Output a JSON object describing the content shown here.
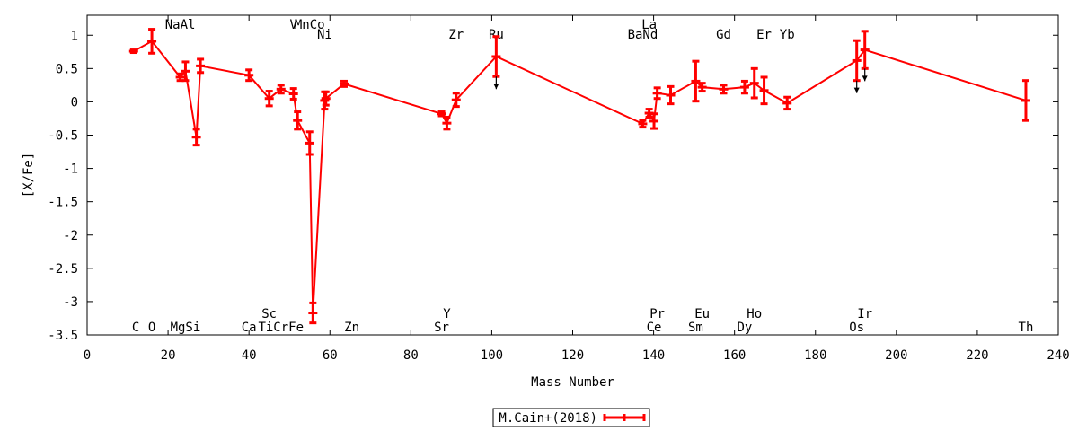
{
  "chart_data": {
    "type": "line",
    "xlabel": "Mass Number",
    "ylabel": "[X/Fe]",
    "xlim": [
      0,
      240
    ],
    "ylim": [
      -3.5,
      1.3
    ],
    "xticks": [
      0,
      20,
      40,
      60,
      80,
      100,
      120,
      140,
      160,
      180,
      200,
      220,
      240
    ],
    "yticks": [
      -3.5,
      -3,
      -2.5,
      -2,
      -1.5,
      -1,
      -0.5,
      0,
      0.5,
      1
    ],
    "ytick_labels": [
      "-3.5",
      "-3",
      "-2.5",
      "-2",
      "-1.5",
      "-1",
      "-0.5",
      "0",
      "0.5",
      "1"
    ],
    "grid": false,
    "legend_position": "bottom-center",
    "series": [
      {
        "name": "M.Cain+(2018)",
        "color": "#ff0000",
        "points": [
          {
            "x": 11.5,
            "y": 0.76,
            "err": 0.02
          },
          {
            "x": 16,
            "y": 0.91,
            "err": 0.18
          },
          {
            "x": 23,
            "y": 0.37,
            "err": 0.05
          },
          {
            "x": 24.3,
            "y": 0.46,
            "err": 0.14
          },
          {
            "x": 27,
            "y": -0.53,
            "err": 0.12
          },
          {
            "x": 28,
            "y": 0.54,
            "err": 0.1
          },
          {
            "x": 40,
            "y": 0.4,
            "err": 0.08
          },
          {
            "x": 45,
            "y": 0.05,
            "err": 0.11
          },
          {
            "x": 47.9,
            "y": 0.19,
            "err": 0.06
          },
          {
            "x": 51,
            "y": 0.12,
            "err": 0.08
          },
          {
            "x": 52,
            "y": -0.28,
            "err": 0.13
          },
          {
            "x": 55,
            "y": -0.62,
            "err": 0.17
          },
          {
            "x": 55.8,
            "y": -3.17,
            "err": 0.15
          },
          {
            "x": 58.7,
            "y": 0.02,
            "err": 0.13
          },
          {
            "x": 59,
            "y": 0.05,
            "err": 0.1
          },
          {
            "x": 63.5,
            "y": 0.27,
            "err": 0.04
          },
          {
            "x": 87.6,
            "y": -0.18,
            "err": 0.03
          },
          {
            "x": 88.9,
            "y": -0.32,
            "err": 0.09
          },
          {
            "x": 91.2,
            "y": 0.03,
            "err": 0.1
          },
          {
            "x": 101.1,
            "y": 0.68,
            "err": 0.3,
            "upper_limit": true
          },
          {
            "x": 137.3,
            "y": -0.33,
            "err": 0.05
          },
          {
            "x": 138.9,
            "y": -0.17,
            "err": 0.06
          },
          {
            "x": 140.1,
            "y": -0.29,
            "err": 0.11
          },
          {
            "x": 140.9,
            "y": 0.13,
            "err": 0.08
          },
          {
            "x": 144.2,
            "y": 0.1,
            "err": 0.13
          },
          {
            "x": 150.4,
            "y": 0.31,
            "err": 0.3
          },
          {
            "x": 152,
            "y": 0.22,
            "err": 0.06
          },
          {
            "x": 157.3,
            "y": 0.19,
            "err": 0.06
          },
          {
            "x": 162.5,
            "y": 0.22,
            "err": 0.09
          },
          {
            "x": 164.9,
            "y": 0.28,
            "err": 0.22
          },
          {
            "x": 167.3,
            "y": 0.17,
            "err": 0.2
          },
          {
            "x": 173,
            "y": -0.02,
            "err": 0.09
          },
          {
            "x": 190.2,
            "y": 0.62,
            "err": 0.3,
            "upper_limit": true
          },
          {
            "x": 192.2,
            "y": 0.78,
            "err": 0.28,
            "upper_limit": true
          },
          {
            "x": 232,
            "y": 0.02,
            "err": 0.3
          }
        ]
      }
    ],
    "element_labels_top": [
      {
        "text": "NaAl",
        "x": 23,
        "row": 0
      },
      {
        "text": "V",
        "x": 51,
        "row": 0
      },
      {
        "text": "MnCo",
        "x": 55,
        "row": 0
      },
      {
        "text": "Ni",
        "x": 58.7,
        "row": 1
      },
      {
        "text": "Zr",
        "x": 91.2,
        "row": 1
      },
      {
        "text": "Ru",
        "x": 101.1,
        "row": 1
      },
      {
        "text": "La",
        "x": 138.9,
        "row": 0
      },
      {
        "text": "BaNd",
        "x": 137.3,
        "row": 1
      },
      {
        "text": "Gd",
        "x": 157.3,
        "row": 1
      },
      {
        "text": "Er",
        "x": 167.3,
        "row": 1
      },
      {
        "text": "Yb",
        "x": 173,
        "row": 1
      }
    ],
    "element_labels_bottom": [
      {
        "text": "Sc",
        "x": 45,
        "row": 0
      },
      {
        "text": "Y",
        "x": 88.9,
        "row": 0
      },
      {
        "text": "Pr",
        "x": 140.9,
        "row": 0
      },
      {
        "text": "Eu",
        "x": 152,
        "row": 0
      },
      {
        "text": "Ho",
        "x": 164.9,
        "row": 0
      },
      {
        "text": "Ir",
        "x": 192.2,
        "row": 0
      },
      {
        "text": "C",
        "x": 12,
        "row": 1
      },
      {
        "text": "O",
        "x": 16,
        "row": 1
      },
      {
        "text": "MgSi",
        "x": 24.3,
        "row": 1
      },
      {
        "text": "Ca",
        "x": 40,
        "row": 1
      },
      {
        "text": "TiCrFe",
        "x": 47.9,
        "row": 1
      },
      {
        "text": "Zn",
        "x": 65.4,
        "row": 1
      },
      {
        "text": "Sr",
        "x": 87.6,
        "row": 1
      },
      {
        "text": "Ce",
        "x": 140.1,
        "row": 1
      },
      {
        "text": "Sm",
        "x": 150.4,
        "row": 1
      },
      {
        "text": "Dy",
        "x": 162.5,
        "row": 1
      },
      {
        "text": "Os",
        "x": 190.2,
        "row": 1
      },
      {
        "text": "Th",
        "x": 232,
        "row": 1
      }
    ]
  }
}
